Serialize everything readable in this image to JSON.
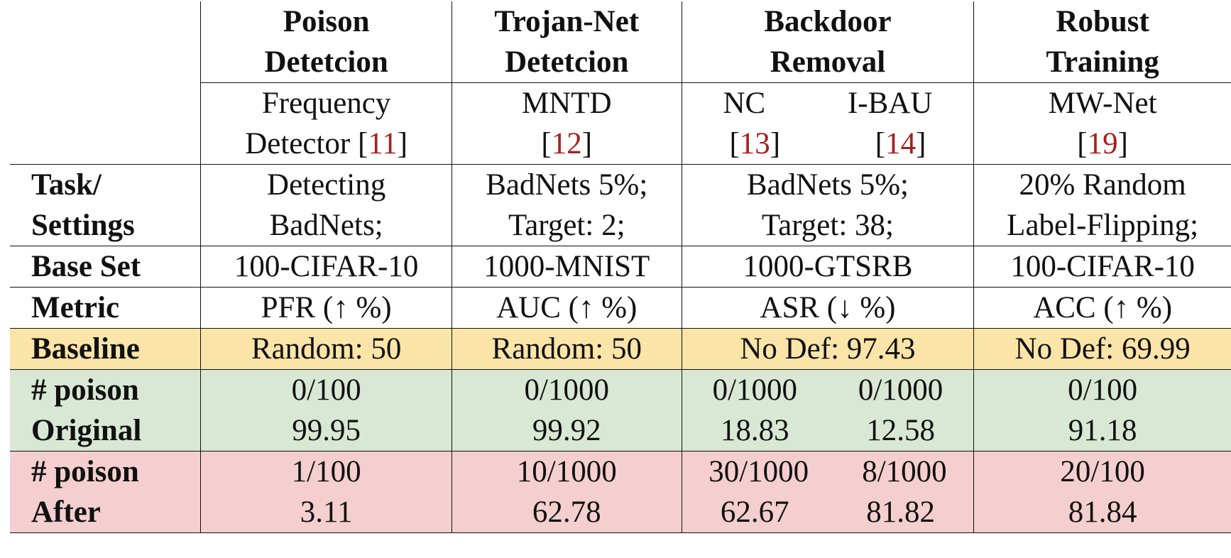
{
  "columns": [
    {
      "title_line1": "Poison",
      "title_line2": "Detetcion",
      "method_line1": "Frequency",
      "method_line2": "Detector ",
      "ref": "11"
    },
    {
      "title_line1": "Trojan-Net",
      "title_line2": "Detetcion",
      "method_line1": "MNTD",
      "method_line2": "",
      "ref": "12"
    },
    {
      "title_line1": "Backdoor",
      "title_line2": "Removal",
      "methods": [
        {
          "name": "NC",
          "ref": "13"
        },
        {
          "name": "I-BAU",
          "ref": "14"
        }
      ]
    },
    {
      "title_line1": "Robust",
      "title_line2": "Training",
      "method_line1": "MW-Net",
      "method_line2": "",
      "ref": "19"
    }
  ],
  "rows": {
    "task": {
      "label_line1": "Task/",
      "label_line2": "Settings",
      "values": [
        {
          "l1": "Detecting",
          "l2": "BadNets;"
        },
        {
          "l1": "BadNets 5%;",
          "l2": "Target: 2;"
        },
        {
          "l1": "BadNets 5%;",
          "l2": "Target: 38;"
        },
        {
          "l1": "20% Random",
          "l2": "Label-Flipping;"
        }
      ]
    },
    "base_set": {
      "label": "Base Set",
      "values": [
        "100-CIFAR-10",
        "1000-MNIST",
        "1000-GTSRB",
        "100-CIFAR-10"
      ]
    },
    "metric": {
      "label": "Metric",
      "values": [
        "PFR (↑ %)",
        "AUC (↑ %)",
        "ASR (↓ %)",
        "ACC (↑ %)"
      ]
    },
    "baseline": {
      "label": "Baseline",
      "values": [
        "Random: 50",
        "Random: 50",
        "No Def: 97.43",
        "No Def: 69.99"
      ]
    },
    "poison_orig": {
      "label": "# poison",
      "values": [
        "0/100",
        "0/1000",
        "0/1000",
        "0/1000",
        "0/100"
      ]
    },
    "original": {
      "label": "Original",
      "values": [
        "99.95",
        "99.92",
        "18.83",
        "12.58",
        "91.18"
      ]
    },
    "poison_after": {
      "label": "# poison",
      "values": [
        "1/100",
        "10/1000",
        "30/1000",
        "8/1000",
        "20/100"
      ]
    },
    "after": {
      "label": "After",
      "values": [
        "3.11",
        "62.78",
        "62.67",
        "81.82",
        "81.84"
      ]
    }
  },
  "colors": {
    "baseline": "#fae4a8",
    "clean": "#d9e8d5",
    "poisoned": "#f5cfcf",
    "citation": "#a6201c"
  }
}
